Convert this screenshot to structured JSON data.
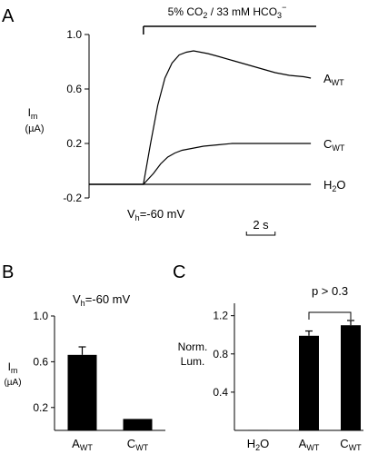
{
  "panels": {
    "a": "A",
    "b": "B",
    "c": "C"
  },
  "chart_data": [
    {
      "panel": "A",
      "type": "line",
      "condition": {
        "prefix": "5% CO",
        "sub": "2",
        "middle": " / 33 mM HCO",
        "sup": "3",
        "suffix": "−"
      },
      "ylabel": {
        "main": "I",
        "sub": "m",
        "unit": "(µA)"
      },
      "yticks": [
        "1.0",
        "0.6",
        "0.2",
        "-0.2"
      ],
      "ytick_values": [
        1.0,
        0.6,
        0.2,
        -0.2
      ],
      "ylim": [
        -0.2,
        1.0
      ],
      "xlim": [
        0,
        16
      ],
      "holding": {
        "main": "V",
        "sub": "h",
        "rest": "=-60 mV"
      },
      "scale_bar": {
        "label": "2 s",
        "seconds": 2
      },
      "application_window": [
        3.8,
        16
      ],
      "series": [
        {
          "name": {
            "main": "A",
            "sub": "WT"
          },
          "x": [
            0,
            1,
            2,
            3,
            3.8,
            4.3,
            4.8,
            5.3,
            5.8,
            6.3,
            6.8,
            7.3,
            7.8,
            8.3,
            9,
            10,
            11,
            12,
            13,
            14,
            15,
            15.5
          ],
          "y": [
            -0.1,
            -0.1,
            -0.1,
            -0.1,
            -0.1,
            0.2,
            0.48,
            0.68,
            0.79,
            0.85,
            0.87,
            0.88,
            0.87,
            0.86,
            0.84,
            0.81,
            0.78,
            0.75,
            0.72,
            0.7,
            0.69,
            0.68
          ]
        },
        {
          "name": {
            "main": "C",
            "sub": "WT"
          },
          "x": [
            0,
            1,
            2,
            3,
            3.8,
            4.5,
            5,
            5.5,
            6,
            6.5,
            7,
            8,
            9,
            10,
            11,
            12,
            13,
            14,
            15,
            15.5
          ],
          "y": [
            -0.1,
            -0.1,
            -0.1,
            -0.1,
            -0.1,
            -0.02,
            0.05,
            0.1,
            0.13,
            0.15,
            0.16,
            0.18,
            0.19,
            0.2,
            0.2,
            0.2,
            0.2,
            0.2,
            0.2,
            0.2
          ]
        },
        {
          "name": {
            "main": "H",
            "sub": "2",
            "rest": "O"
          },
          "x": [
            0,
            2,
            4,
            6,
            8,
            10,
            12,
            14,
            15.5
          ],
          "y": [
            -0.1,
            -0.1,
            -0.1,
            -0.1,
            -0.1,
            -0.1,
            -0.1,
            -0.1,
            -0.1
          ]
        }
      ]
    },
    {
      "panel": "B",
      "type": "bar",
      "holding": {
        "main": "V",
        "sub": "h",
        "rest": "=-60 mV"
      },
      "ylabel": {
        "main": "I",
        "sub": "m",
        "unit": "(µA)"
      },
      "yticks": [
        "1.0",
        "0.6",
        "0.2"
      ],
      "ytick_values": [
        1.0,
        0.6,
        0.2
      ],
      "ylim": [
        0,
        1.0
      ],
      "categories": [
        {
          "main": "A",
          "sub": "WT"
        },
        {
          "main": "C",
          "sub": "WT"
        }
      ],
      "values": [
        0.66,
        0.1
      ],
      "errors": [
        0.07,
        0
      ]
    },
    {
      "panel": "C",
      "type": "bar",
      "ylabel_lines": [
        "Norm.",
        "Lum."
      ],
      "yticks": [
        "1.2",
        "0.8",
        "0.4"
      ],
      "ytick_values": [
        1.2,
        0.8,
        0.4
      ],
      "ylim": [
        0,
        1.33
      ],
      "categories": [
        {
          "main": "H",
          "sub": "2",
          "rest": "O"
        },
        {
          "main": "A",
          "sub": "WT"
        },
        {
          "main": "C",
          "sub": "WT"
        }
      ],
      "values": [
        0.005,
        0.99,
        1.1
      ],
      "errors": [
        0,
        0.05,
        0.05
      ],
      "annotation": "p > 0.3"
    }
  ]
}
